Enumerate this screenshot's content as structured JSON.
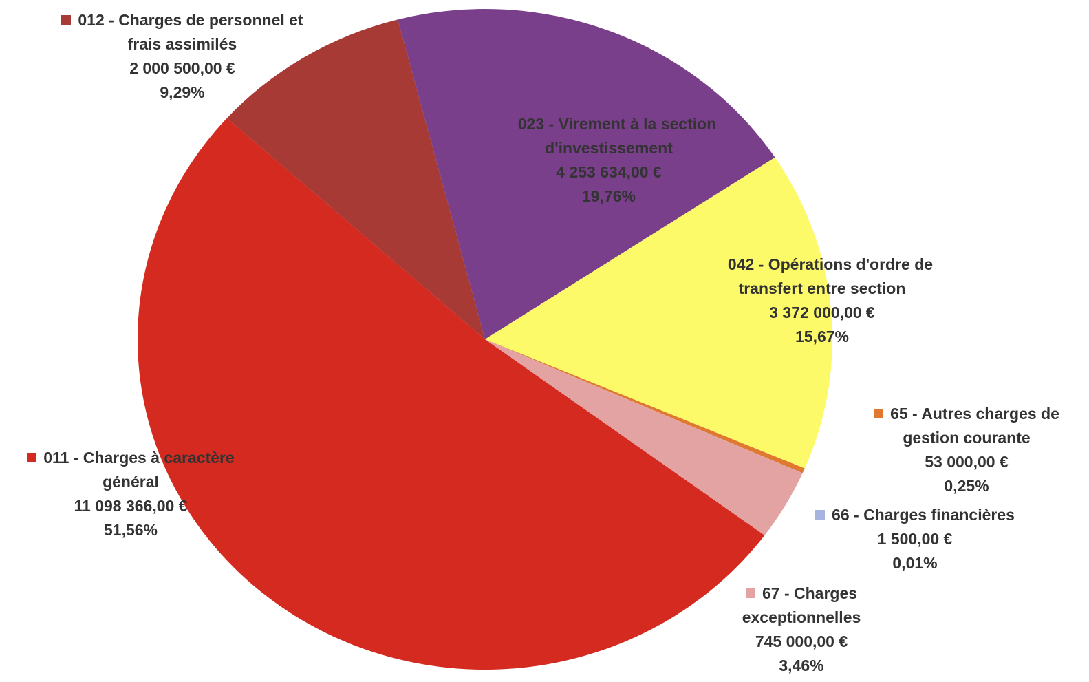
{
  "chart_data": {
    "type": "pie",
    "categories": [
      "011 - Charges à caractère général",
      "012 - Charges de personnel et frais assimilés",
      "023 - Virement à la section d'investissement",
      "042 - Opérations d'ordre de transfert entre section",
      "65 - Autres charges de gestion courante",
      "66 - Charges financières",
      "67 - Charges exceptionnelles"
    ],
    "values": [
      51.56,
      9.29,
      19.76,
      15.67,
      0.25,
      0.01,
      3.46
    ],
    "value_labels": [
      "51,56%",
      "9,29%",
      "19,76%",
      "15,67%",
      "0,25%",
      "0,01%",
      "3,46%"
    ],
    "amounts": [
      11098366,
      2000500,
      4253634,
      3372000,
      53000,
      1500,
      745000
    ],
    "amount_labels": [
      "11 098 366,00 €",
      "2 000 500,00 €",
      "4 253 634,00 €",
      "3 372 000,00 €",
      "53 000,00 €",
      "1 500,00 €",
      "745 000,00 €"
    ],
    "colors": [
      "#d42a20",
      "#a83a36",
      "#7a3f8a",
      "#fdfa6a",
      "#e0782f",
      "#a8b4e0",
      "#e4a3a3"
    ],
    "legend": true
  }
}
